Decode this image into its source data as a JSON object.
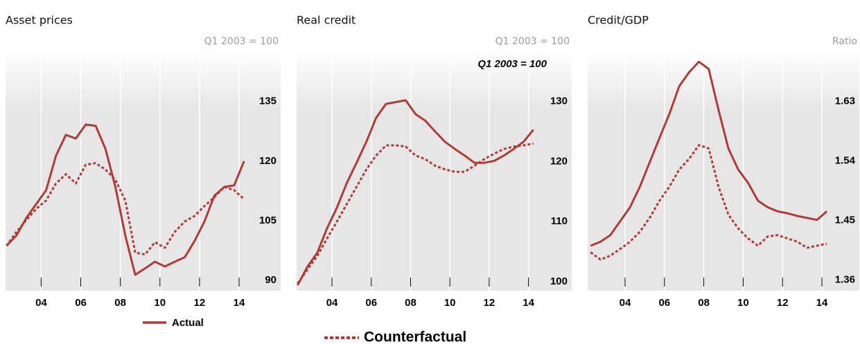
{
  "chart_data": [
    {
      "type": "line",
      "title": "Asset prices",
      "y_label": "Q1 2003 = 100",
      "x": [
        2002.25,
        2002.75,
        2003.25,
        2003.75,
        2004.25,
        2004.75,
        2005.25,
        2005.75,
        2006.25,
        2006.75,
        2007.25,
        2007.75,
        2008.25,
        2008.75,
        2009.25,
        2009.75,
        2010.25,
        2010.75,
        2011.25,
        2011.75,
        2012.25,
        2012.75,
        2013.25,
        2013.75,
        2014.25
      ],
      "xlim": [
        2002.2,
        2016.1
      ],
      "xticks": [
        {
          "value": 2004,
          "label": "04"
        },
        {
          "value": 2006,
          "label": "06"
        },
        {
          "value": 2008,
          "label": "08"
        },
        {
          "value": 2010,
          "label": "10"
        },
        {
          "value": 2012,
          "label": "12"
        },
        {
          "value": 2014,
          "label": "14"
        }
      ],
      "ylim": [
        87.4,
        148
      ],
      "yticks": [
        90,
        105,
        120,
        135
      ],
      "grid": true,
      "series": [
        {
          "name": "Actual",
          "color": "#b03a36",
          "style": "solid",
          "values": [
            98.7,
            101.3,
            105.7,
            109.2,
            112.7,
            121.4,
            126.6,
            125.7,
            129.2,
            128.9,
            123.1,
            113.5,
            101.3,
            91.4,
            93,
            94.7,
            93.5,
            94.7,
            95.8,
            99.9,
            104.8,
            111.3,
            113.5,
            113.9,
            120
          ]
        },
        {
          "name": "Counterfactual",
          "color": "#b03a36",
          "style": "dashed",
          "values": [
            98.7,
            102.2,
            105.2,
            108,
            110.1,
            114.4,
            116.7,
            114.4,
            119.1,
            119.5,
            117.9,
            115.3,
            110.1,
            97,
            96.5,
            99.6,
            98.2,
            102.2,
            104.8,
            106.2,
            108.7,
            110.9,
            113.5,
            112.7,
            110.4
          ]
        }
      ]
    },
    {
      "type": "line",
      "title": "Real credit",
      "y_label": "Q1 2003 = 100",
      "annotation": "Q1 2003 = 100",
      "x": [
        2002.25,
        2002.75,
        2003.25,
        2003.75,
        2004.25,
        2004.75,
        2005.25,
        2005.75,
        2006.25,
        2006.75,
        2007.25,
        2007.75,
        2008.25,
        2008.75,
        2009.25,
        2009.75,
        2010.25,
        2010.75,
        2011.25,
        2011.75,
        2012.25,
        2012.75,
        2013.25,
        2013.75,
        2014.25
      ],
      "xlim": [
        2002.2,
        2016.2
      ],
      "xticks": [
        {
          "value": 2004,
          "label": "04"
        },
        {
          "value": 2006,
          "label": "06"
        },
        {
          "value": 2008,
          "label": "08"
        },
        {
          "value": 2010,
          "label": "10"
        },
        {
          "value": 2012,
          "label": "12"
        },
        {
          "value": 2014,
          "label": "14"
        }
      ],
      "ylim": [
        98.5,
        138.6
      ],
      "yticks": [
        100,
        110,
        120,
        130
      ],
      "grid": true,
      "series": [
        {
          "color": "#b03a36",
          "style": "solid",
          "values": [
            99.4,
            102.5,
            104.8,
            108.9,
            112.3,
            116.4,
            119.8,
            123.3,
            127.3,
            129.6,
            129.9,
            130.2,
            127.9,
            126.8,
            125,
            123.3,
            122.1,
            121,
            119.8,
            119.8,
            120.1,
            121,
            122.1,
            123.3,
            125.3
          ]
        },
        {
          "color": "#b03a36",
          "style": "dashed",
          "values": [
            99.7,
            102,
            104.3,
            107.2,
            110,
            112.9,
            115.8,
            118.7,
            121,
            122.7,
            122.7,
            122.5,
            121,
            120.4,
            119.3,
            118.7,
            118.3,
            118.3,
            119.3,
            120.4,
            121.3,
            122.1,
            122.5,
            122.7,
            123
          ]
        }
      ]
    },
    {
      "type": "line",
      "title": "Credit/GDP",
      "y_label": "Ratio",
      "x": [
        2002.25,
        2002.75,
        2003.25,
        2003.75,
        2004.25,
        2004.75,
        2005.25,
        2005.75,
        2006.25,
        2006.75,
        2007.25,
        2007.75,
        2008.25,
        2008.75,
        2009.25,
        2009.75,
        2010.25,
        2010.75,
        2011.25,
        2011.75,
        2012.25,
        2012.75,
        2013.25,
        2013.75,
        2014.25
      ],
      "xlim": [
        2002.1,
        2015.9
      ],
      "xticks": [
        {
          "value": 2004,
          "label": "04"
        },
        {
          "value": 2006,
          "label": "06"
        },
        {
          "value": 2008,
          "label": "08"
        },
        {
          "value": 2010,
          "label": "10"
        },
        {
          "value": 2012,
          "label": "12"
        },
        {
          "value": 2014,
          "label": "14"
        }
      ],
      "ylim": [
        1.344,
        1.708
      ],
      "yticks": [
        1.36,
        1.45,
        1.54,
        1.63
      ],
      "grid": true,
      "series": [
        {
          "color": "#b03a36",
          "style": "solid",
          "values": [
            1.412,
            1.418,
            1.428,
            1.449,
            1.47,
            1.501,
            1.538,
            1.575,
            1.611,
            1.653,
            1.674,
            1.69,
            1.679,
            1.617,
            1.559,
            1.527,
            1.507,
            1.48,
            1.47,
            1.464,
            1.461,
            1.457,
            1.454,
            1.451,
            1.464
          ]
        },
        {
          "color": "#b03a36",
          "style": "dashed",
          "values": [
            1.402,
            1.391,
            1.397,
            1.407,
            1.418,
            1.433,
            1.454,
            1.48,
            1.501,
            1.527,
            1.543,
            1.564,
            1.559,
            1.501,
            1.459,
            1.438,
            1.423,
            1.412,
            1.426,
            1.428,
            1.423,
            1.418,
            1.409,
            1.412,
            1.415
          ]
        }
      ]
    }
  ]
}
